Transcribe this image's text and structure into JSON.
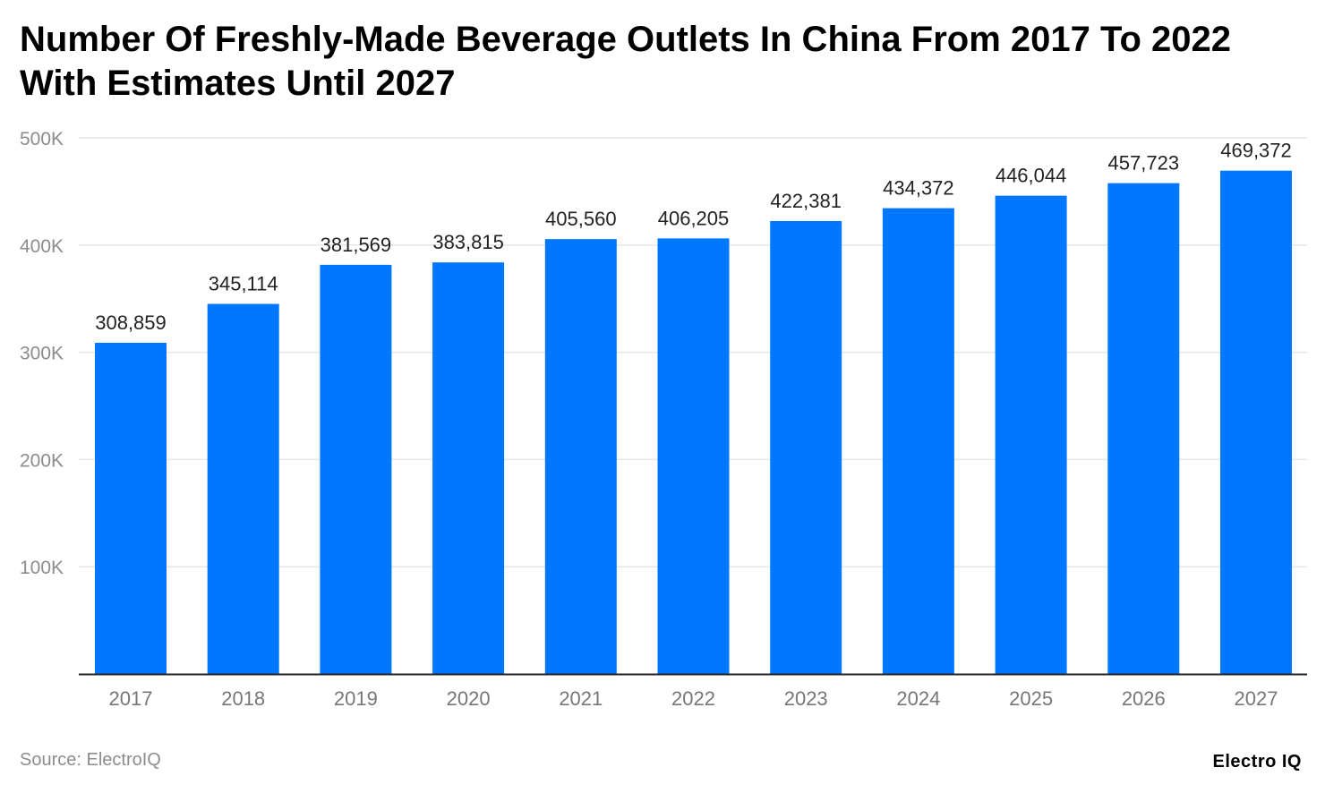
{
  "title": "Number Of Freshly-Made Beverage Outlets In China From 2017 To 2022 With Estimates Until 2027",
  "source": "Source: ElectroIQ",
  "brand": "Electro IQ",
  "colors": {
    "bar": "#0077ff",
    "grid": "#e6e6e6",
    "axis": "#222222",
    "tick": "#8c8c8c",
    "label": "#222222"
  },
  "chart_data": {
    "type": "bar",
    "title": "Number Of Freshly-Made Beverage Outlets In China From 2017 To 2022 With Estimates Until 2027",
    "xlabel": "",
    "ylabel": "",
    "categories": [
      "2017",
      "2018",
      "2019",
      "2020",
      "2021",
      "2022",
      "2023",
      "2024",
      "2025",
      "2026",
      "2027"
    ],
    "values": [
      308859,
      345114,
      381569,
      383815,
      405560,
      406205,
      422381,
      434372,
      446044,
      457723,
      469372
    ],
    "data_labels": [
      "308,859",
      "345,114",
      "381,569",
      "383,815",
      "405,560",
      "406,205",
      "422,381",
      "434,372",
      "446,044",
      "457,723",
      "469,372"
    ],
    "ylim": [
      0,
      500000
    ],
    "yticks": [
      100000,
      200000,
      300000,
      400000,
      500000
    ],
    "ytick_labels": [
      "100K",
      "200K",
      "300K",
      "400K",
      "500K"
    ],
    "grid": true,
    "legend": "none"
  }
}
